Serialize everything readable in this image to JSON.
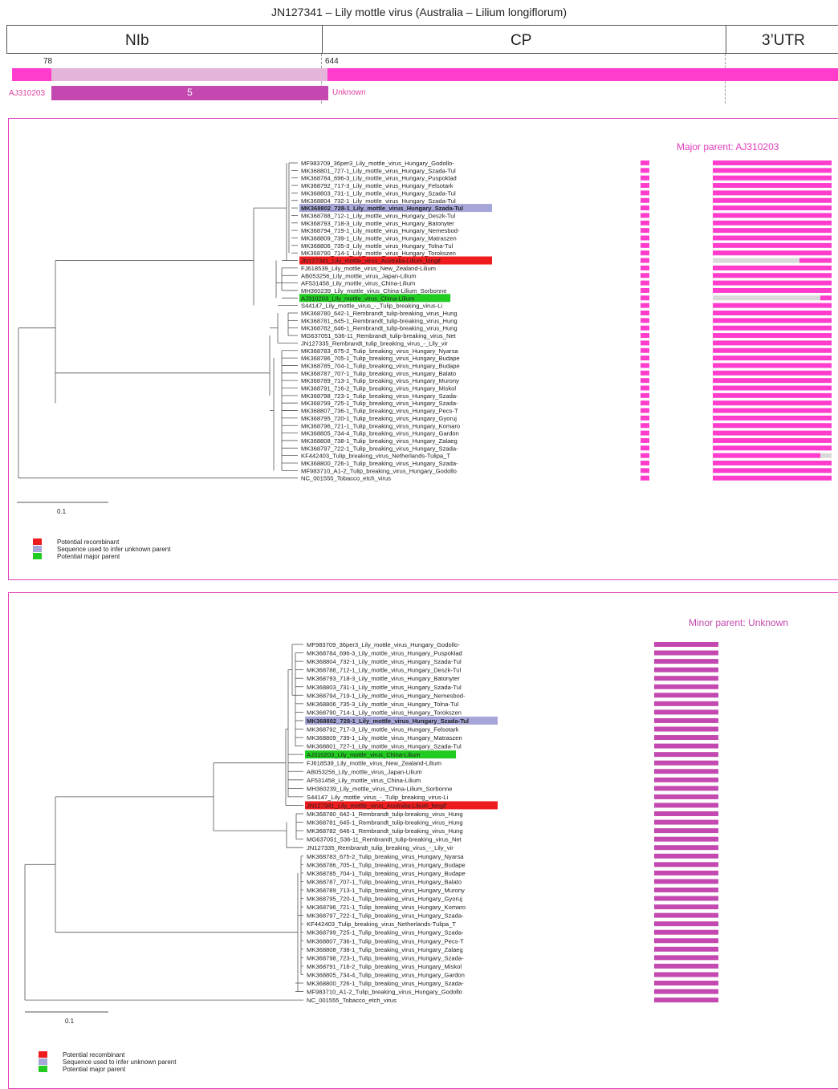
{
  "title": "JN127341 – Lily mottle virus (Australia – Lilium longiflorum)",
  "regions": [
    "NIb",
    "CP",
    "3’UTR"
  ],
  "breakpoints": {
    "start": "78",
    "end": "644"
  },
  "recombinant_region": {
    "sequence": "AJ310203",
    "number": "5",
    "minor": "Unknown"
  },
  "colors": {
    "accent": "#ff3ccc",
    "minor": "#c349b0",
    "recombinant": "#ee1c1c",
    "unknown_seq": "#a6a6d8",
    "major": "#21cc21"
  },
  "legend": [
    "Potential recombinant",
    "Sequence used to infer unknown parent",
    "Potential major parent"
  ],
  "panels": [
    {
      "title": "Major parent: AJ310203",
      "scale": "0.1",
      "taxa": [
        {
          "n": "MF983709_36per3_Lily_mottle_virus_Hungary_Godollo-",
          "h": ""
        },
        {
          "n": "MK368801_727-1_Lily_mottle_virus_Hungary_Szada-Tul",
          "h": ""
        },
        {
          "n": "MK368784_696-3_Lily_mottle_virus_Hungary_Puspoklad",
          "h": ""
        },
        {
          "n": "MK368792_717-3_Lily_mottle_virus_Hungary_Felsotark",
          "h": ""
        },
        {
          "n": "MK368803_731-1_Lily_mottle_virus_Hungary_Szada-Tul",
          "h": ""
        },
        {
          "n": "MK368804_732-1_Lily_mottle_virus_Hungary_Szada-Tul",
          "h": ""
        },
        {
          "n": "MK368802_728-1_Lily_mottle_virus_Hungary_Szada-Tul",
          "h": "unknown"
        },
        {
          "n": "MK368788_712-1_Lily_mottle_virus_Hungary_Deszk-Tul",
          "h": ""
        },
        {
          "n": "MK368793_718-3_Lily_mottle_virus_Hungary_Batonyter",
          "h": ""
        },
        {
          "n": "MK368794_719-1_Lily_mottle_virus_Hungary_Nemesbod-",
          "h": ""
        },
        {
          "n": "MK368809_739-1_Lily_mottle_virus_Hungary_Matraszen",
          "h": ""
        },
        {
          "n": "MK368806_735-3_Lily_mottle_virus_Hungary_Tolna-Tul",
          "h": ""
        },
        {
          "n": "MK368790_714-1_Lily_mottle_virus_Hungary_Torokszen",
          "h": ""
        },
        {
          "n": "JN127341_Lily_mottle_virus_Australia-Lilium_longif",
          "h": "rec"
        },
        {
          "n": "FJ618539_Lily_mottle_virus_New_Zealand-Lilium",
          "h": ""
        },
        {
          "n": "AB053256_Lily_mottle_virus_Japan-Lilium",
          "h": ""
        },
        {
          "n": "AF531458_Lily_mottle_virus_China-Lilium",
          "h": ""
        },
        {
          "n": "MH360239_Lily_mottle_virus_China-Lilium_Sorbonne",
          "h": ""
        },
        {
          "n": "AJ310203_Lily_mottle_virus_China-Lilium",
          "h": "major"
        },
        {
          "n": "S44147_Lily_mottle_virus_-_Tulip_breaking_virus-Li",
          "h": ""
        },
        {
          "n": "MK368780_642-1_Rembrandt_tulip-breaking_virus_Hung",
          "h": ""
        },
        {
          "n": "MK368781_645-1_Rembrandt_tulip-breaking_virus_Hung",
          "h": ""
        },
        {
          "n": "MK368782_646-1_Rembrandt_tulip-breaking_virus_Hung",
          "h": ""
        },
        {
          "n": "MG637051_536-11_Rembrandt_tulip-breaking_virus_Net",
          "h": ""
        },
        {
          "n": "JN127335_Rembrandt_tulip_breaking_virus_-_Lily_vir",
          "h": ""
        },
        {
          "n": "MK368783_675-2_Tulip_breaking_virus_Hungary_Nyarsa",
          "h": ""
        },
        {
          "n": "MK368786_705-1_Tulip_breaking_virus_Hungary_Budape",
          "h": ""
        },
        {
          "n": "MK368785_704-1_Tulip_breaking_virus_Hungary_Budape",
          "h": ""
        },
        {
          "n": "MK368787_707-1_Tulip_breaking_virus_Hungary_Balato",
          "h": ""
        },
        {
          "n": "MK368789_713-1_Tulip_breaking_virus_Hungary_Murony",
          "h": ""
        },
        {
          "n": "MK368791_716-2_Tulip_breaking_virus_Hungary_Miskol",
          "h": ""
        },
        {
          "n": "MK368798_723-1_Tulip_breaking_virus_Hungary_Szada-",
          "h": ""
        },
        {
          "n": "MK368799_725-1_Tulip_breaking_virus_Hungary_Szada-",
          "h": ""
        },
        {
          "n": "MK368807_736-1_Tulip_breaking_virus_Hungary_Pecs-T",
          "h": ""
        },
        {
          "n": "MK368795_720-1_Tulip_breaking_virus_Hungary_Gyoruj",
          "h": ""
        },
        {
          "n": "MK368796_721-1_Tulip_breaking_virus_Hungary_Komaro",
          "h": ""
        },
        {
          "n": "MK368805_734-4_Tulip_breaking_virus_Hungary_Gardon",
          "h": ""
        },
        {
          "n": "MK368808_738-1_Tulip_breaking_virus_Hungary_Zalaeg",
          "h": ""
        },
        {
          "n": "MK368797_722-1_Tulip_breaking_virus_Hungary_Szada-",
          "h": ""
        },
        {
          "n": "KF442403_Tulip_breaking_virus_Netherlands-Tulipa_T",
          "h": ""
        },
        {
          "n": "MK368800_726-1_Tulip_breaking_virus_Hungary_Szada-",
          "h": ""
        },
        {
          "n": "MF983710_A1-2_Tulip_breaking_virus_Hungary_Godollo",
          "h": ""
        },
        {
          "n": "NC_001555_Tobacco_etch_virus",
          "h": ""
        }
      ]
    },
    {
      "title": "Minor parent: Unknown",
      "scale": "0.1",
      "taxa": [
        {
          "n": "MF983709_36per3_Lily_mottle_virus_Hungary_Godollo-",
          "h": ""
        },
        {
          "n": "MK368784_696-3_Lily_mottle_virus_Hungary_Puspoklad",
          "h": ""
        },
        {
          "n": "MK368804_732-1_Lily_mottle_virus_Hungary_Szada-Tul",
          "h": ""
        },
        {
          "n": "MK368788_712-1_Lily_mottle_virus_Hungary_Deszk-Tul",
          "h": ""
        },
        {
          "n": "MK368793_718-3_Lily_mottle_virus_Hungary_Batonyter",
          "h": ""
        },
        {
          "n": "MK368803_731-1_Lily_mottle_virus_Hungary_Szada-Tul",
          "h": ""
        },
        {
          "n": "MK368794_719-1_Lily_mottle_virus_Hungary_Nemesbod-",
          "h": ""
        },
        {
          "n": "MK368806_735-3_Lily_mottle_virus_Hungary_Tolna-Tul",
          "h": ""
        },
        {
          "n": "MK368790_714-1_Lily_mottle_virus_Hungary_Torokszen",
          "h": ""
        },
        {
          "n": "MK368802_728-1_Lily_mottle_virus_Hungary_Szada-Tul",
          "h": "unknown"
        },
        {
          "n": "MK368792_717-3_Lily_mottle_virus_Hungary_Felsotark",
          "h": ""
        },
        {
          "n": "MK368809_739-1_Lily_mottle_virus_Hungary_Matraszen",
          "h": ""
        },
        {
          "n": "MK368801_727-1_Lily_mottle_virus_Hungary_Szada-Tul",
          "h": ""
        },
        {
          "n": "AJ310203_Lily_mottle_virus_China-Lilium",
          "h": "major"
        },
        {
          "n": "FJ618539_Lily_mottle_virus_New_Zealand-Lilium",
          "h": ""
        },
        {
          "n": "AB053256_Lily_mottle_virus_Japan-Lilium",
          "h": ""
        },
        {
          "n": "AF531458_Lily_mottle_virus_China-Lilium",
          "h": ""
        },
        {
          "n": "MH360239_Lily_mottle_virus_China-Lilium_Sorbonne",
          "h": ""
        },
        {
          "n": "S44147_Lily_mottle_virus_-_Tulip_breaking_virus-Li",
          "h": ""
        },
        {
          "n": "JN127341_Lily_mottle_virus_Australia-Lilium_longif",
          "h": "rec"
        },
        {
          "n": "MK368780_642-1_Rembrandt_tulip-breaking_virus_Hung",
          "h": ""
        },
        {
          "n": "MK368781_645-1_Rembrandt_tulip-breaking_virus_Hung",
          "h": ""
        },
        {
          "n": "MK368782_646-1_Rembrandt_tulip-breaking_virus_Hung",
          "h": ""
        },
        {
          "n": "MG637051_536-11_Rembrandt_tulip-breaking_virus_Net",
          "h": ""
        },
        {
          "n": "JN127335_Rembrandt_tulip_breaking_virus_-_Lily_vir",
          "h": ""
        },
        {
          "n": "MK368783_675-2_Tulip_breaking_virus_Hungary_Nyarsa",
          "h": ""
        },
        {
          "n": "MK368786_705-1_Tulip_breaking_virus_Hungary_Budape",
          "h": ""
        },
        {
          "n": "MK368785_704-1_Tulip_breaking_virus_Hungary_Budape",
          "h": ""
        },
        {
          "n": "MK368787_707-1_Tulip_breaking_virus_Hungary_Balato",
          "h": ""
        },
        {
          "n": "MK368789_713-1_Tulip_breaking_virus_Hungary_Murony",
          "h": ""
        },
        {
          "n": "MK368795_720-1_Tulip_breaking_virus_Hungary_Gyoruj",
          "h": ""
        },
        {
          "n": "MK368796_721-1_Tulip_breaking_virus_Hungary_Komaro",
          "h": ""
        },
        {
          "n": "MK368797_722-1_Tulip_breaking_virus_Hungary_Szada-",
          "h": ""
        },
        {
          "n": "KF442403_Tulip_breaking_virus_Netherlands-Tulipa_T",
          "h": ""
        },
        {
          "n": "MK368799_725-1_Tulip_breaking_virus_Hungary_Szada-",
          "h": ""
        },
        {
          "n": "MK368807_736-1_Tulip_breaking_virus_Hungary_Pecs-T",
          "h": ""
        },
        {
          "n": "MK368808_738-1_Tulip_breaking_virus_Hungary_Zalaeg",
          "h": ""
        },
        {
          "n": "MK368798_723-1_Tulip_breaking_virus_Hungary_Szada-",
          "h": ""
        },
        {
          "n": "MK368791_716-2_Tulip_breaking_virus_Hungary_Miskol",
          "h": ""
        },
        {
          "n": "MK368805_734-4_Tulip_breaking_virus_Hungary_Gardon",
          "h": ""
        },
        {
          "n": "MK368800_726-1_Tulip_breaking_virus_Hungary_Szada-",
          "h": ""
        },
        {
          "n": "MF983710_A1-2_Tulip_breaking_virus_Hungary_Godollo",
          "h": ""
        },
        {
          "n": "NC_001555_Tobacco_etch_virus",
          "h": ""
        }
      ]
    }
  ]
}
